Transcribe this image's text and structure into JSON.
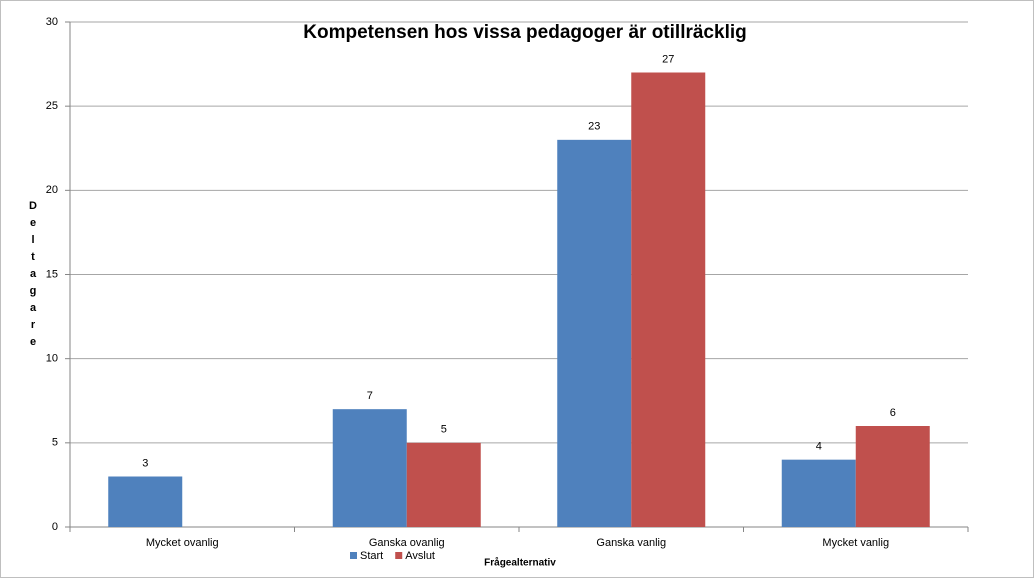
{
  "chart_data": {
    "type": "bar",
    "title": "Kompetensen hos vissa pedagoger är otillräcklig",
    "x_label": "Frågealternativ",
    "y_label": "Deltagare",
    "categories": [
      "Mycket ovanlig",
      "Ganska ovanlig",
      "Ganska vanlig",
      "Mycket vanlig"
    ],
    "series": [
      {
        "name": "Start",
        "color": "#4f81bd",
        "values": [
          3,
          7,
          23,
          4
        ]
      },
      {
        "name": "Avslut",
        "color": "#c0504d",
        "values": [
          null,
          5,
          27,
          6
        ]
      }
    ],
    "ylim": [
      0,
      30
    ],
    "yticks": [
      0,
      5,
      10,
      15,
      20,
      25,
      30
    ],
    "grid": true,
    "legend": "bottom"
  }
}
